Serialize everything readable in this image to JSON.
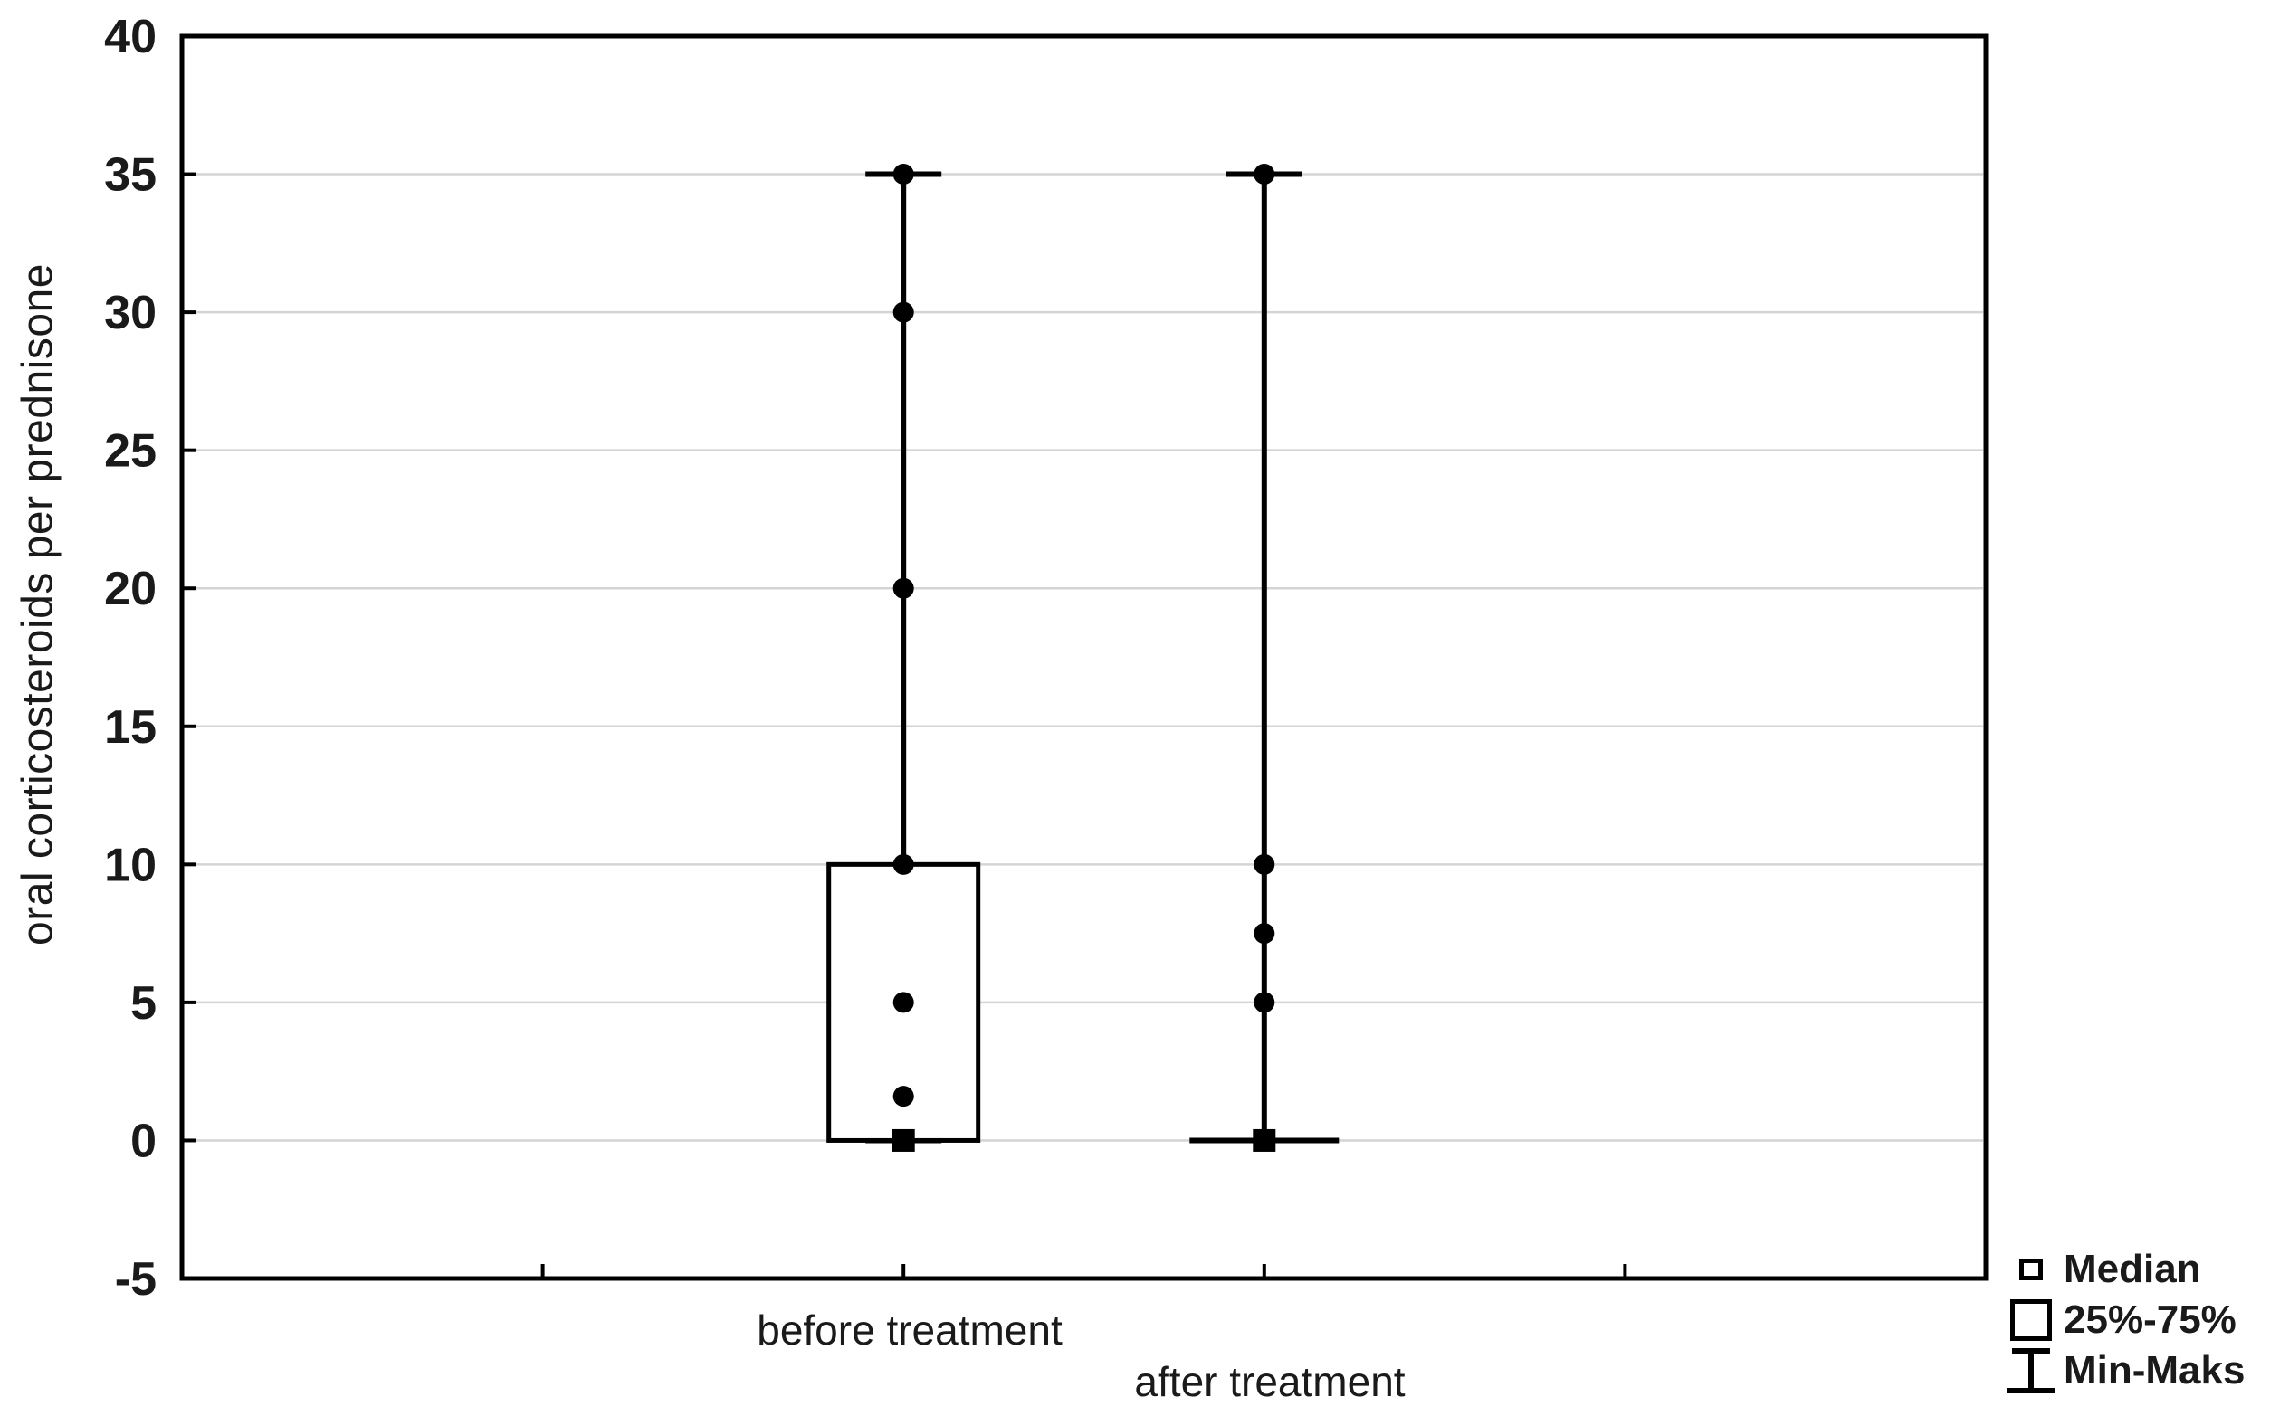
{
  "chart_data": {
    "type": "box",
    "title": "",
    "xlabel": "",
    "ylabel": "oral corticosteroids per prednisone",
    "ylim": [
      -5,
      40
    ],
    "yticks": [
      -5,
      0,
      5,
      10,
      15,
      20,
      25,
      30,
      35,
      40
    ],
    "grid": "horizontal",
    "categories": [
      "before treatment",
      "after treatment"
    ],
    "series": [
      {
        "name": "before treatment",
        "median": 0,
        "q1": 0,
        "q3": 10,
        "min": 0,
        "max": 35,
        "points": [
          35,
          30,
          20,
          10,
          5,
          1.6
        ]
      },
      {
        "name": "after treatment",
        "median": 0,
        "q1": 0,
        "q3": 0,
        "min": 0,
        "max": 35,
        "points": [
          35,
          10,
          7.5,
          5
        ]
      }
    ],
    "legend": [
      {
        "symbol": "median-square",
        "label": "Median"
      },
      {
        "symbol": "box-square",
        "label": "25%-75%"
      },
      {
        "symbol": "whisker-ibeam",
        "label": "Min-Maks"
      }
    ],
    "legend_position": "bottom-right",
    "colors": {
      "frame": "#000000",
      "marker": "#000000",
      "grid": "#d4d4d4",
      "background": "#ffffff",
      "text": "#1a1a1a"
    }
  }
}
